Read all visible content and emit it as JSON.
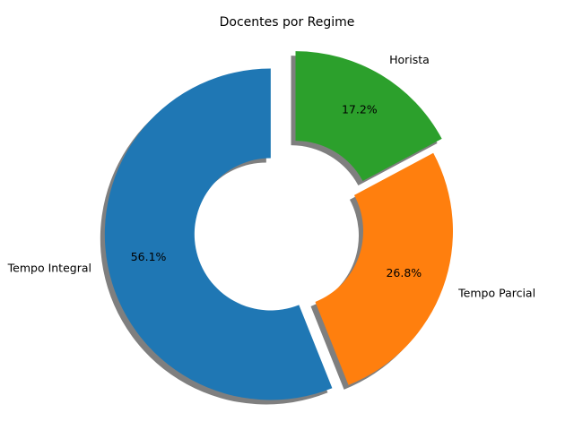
{
  "chart_data": {
    "type": "pie",
    "variant": "donut",
    "title": "Docentes por Regime",
    "categories": [
      "Tempo Integral",
      "Tempo Parcial",
      "Horista"
    ],
    "values": [
      56.1,
      26.8,
      17.2
    ],
    "value_labels": [
      "56.1%",
      "26.8%",
      "17.2%"
    ],
    "colors": [
      "#1f77b4",
      "#ff7f0e",
      "#2ca02c"
    ],
    "exploded": [
      "Tempo Integral",
      "Horista"
    ],
    "shadow": true,
    "start_angle_deg": 90,
    "direction": "counterclockwise",
    "legend": "none"
  }
}
